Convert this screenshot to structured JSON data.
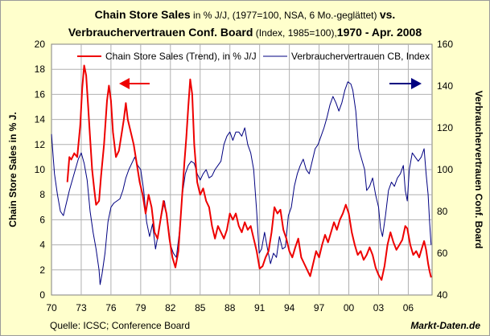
{
  "title": {
    "line1_a": "Chain Store Sales",
    "line1_b": " in % J/J, (1977=100, NSA, 6 Mo.-geglättet) ",
    "line1_c": "vs.",
    "line2_a": "Verbrauchervertrauen Conf. Board",
    "line2_b": " (Index, 1985=100),",
    "line2_c": "1970 - Apr. 2008"
  },
  "source": "Quelle: ICSC; Conference Board",
  "brand": "Markt-Daten.de",
  "colors": {
    "sales": "#ee0000",
    "confidence": "#000080",
    "background": "#ffffcc",
    "plot": "#ffffff",
    "grid": "#b0b0b0"
  },
  "chart_data": {
    "type": "line",
    "xlabel": "",
    "x_ticks": [
      "70",
      "73",
      "76",
      "79",
      "82",
      "85",
      "88",
      "91",
      "94",
      "97",
      "00",
      "03",
      "06"
    ],
    "xlim": [
      1970,
      2008.4
    ],
    "ylabel_left": "Chain Store Sales in % J.",
    "ylim_left": [
      0,
      20
    ],
    "y_ticks_left": [
      "0",
      "2",
      "4",
      "6",
      "8",
      "10",
      "12",
      "14",
      "16",
      "18",
      "20"
    ],
    "ylabel_right": "Verbrauchervertrauen Conf. Board",
    "ylim_right": [
      40,
      160
    ],
    "y_ticks_right": [
      "40",
      "60",
      "80",
      "100",
      "120",
      "140",
      "160"
    ],
    "grid": true,
    "legend_position": "top",
    "series": [
      {
        "name": "Chain Store Sales (Trend), in % J/J",
        "axis": "left",
        "color": "#ee0000",
        "points": [
          [
            1971.6,
            9.0
          ],
          [
            1971.8,
            11.0
          ],
          [
            1972.0,
            10.8
          ],
          [
            1972.3,
            11.3
          ],
          [
            1972.6,
            11.0
          ],
          [
            1972.9,
            13.5
          ],
          [
            1973.1,
            16.5
          ],
          [
            1973.3,
            18.3
          ],
          [
            1973.5,
            17.5
          ],
          [
            1973.7,
            15.0
          ],
          [
            1973.9,
            12.5
          ],
          [
            1974.1,
            10.0
          ],
          [
            1974.3,
            8.5
          ],
          [
            1974.5,
            7.2
          ],
          [
            1974.8,
            7.5
          ],
          [
            1975.0,
            9.5
          ],
          [
            1975.3,
            12.0
          ],
          [
            1975.6,
            15.5
          ],
          [
            1975.8,
            16.7
          ],
          [
            1976.0,
            15.5
          ],
          [
            1976.2,
            13.0
          ],
          [
            1976.5,
            11.0
          ],
          [
            1976.8,
            11.5
          ],
          [
            1977.1,
            13.0
          ],
          [
            1977.3,
            14.0
          ],
          [
            1977.5,
            15.3
          ],
          [
            1977.7,
            14.0
          ],
          [
            1978.0,
            13.0
          ],
          [
            1978.3,
            12.0
          ],
          [
            1978.6,
            10.5
          ],
          [
            1978.9,
            9.0
          ],
          [
            1979.2,
            8.0
          ],
          [
            1979.5,
            6.5
          ],
          [
            1979.8,
            8.0
          ],
          [
            1980.1,
            7.0
          ],
          [
            1980.4,
            5.0
          ],
          [
            1980.7,
            4.5
          ],
          [
            1981.0,
            6.0
          ],
          [
            1981.3,
            7.5
          ],
          [
            1981.6,
            6.5
          ],
          [
            1981.9,
            4.5
          ],
          [
            1982.2,
            3.0
          ],
          [
            1982.5,
            2.2
          ],
          [
            1982.8,
            3.5
          ],
          [
            1983.1,
            7.0
          ],
          [
            1983.4,
            10.5
          ],
          [
            1983.6,
            12.5
          ],
          [
            1983.8,
            15.0
          ],
          [
            1984.0,
            17.2
          ],
          [
            1984.2,
            16.0
          ],
          [
            1984.4,
            12.0
          ],
          [
            1984.7,
            9.0
          ],
          [
            1985.0,
            8.0
          ],
          [
            1985.3,
            8.5
          ],
          [
            1985.6,
            7.5
          ],
          [
            1985.9,
            7.0
          ],
          [
            1986.2,
            5.5
          ],
          [
            1986.5,
            4.5
          ],
          [
            1986.8,
            5.5
          ],
          [
            1987.1,
            5.0
          ],
          [
            1987.4,
            4.5
          ],
          [
            1987.7,
            5.2
          ],
          [
            1988.0,
            6.5
          ],
          [
            1988.3,
            6.0
          ],
          [
            1988.6,
            6.5
          ],
          [
            1988.9,
            5.5
          ],
          [
            1989.2,
            5.0
          ],
          [
            1989.5,
            5.8
          ],
          [
            1989.8,
            5.2
          ],
          [
            1990.1,
            5.5
          ],
          [
            1990.4,
            4.5
          ],
          [
            1990.7,
            3.5
          ],
          [
            1991.0,
            2.1
          ],
          [
            1991.3,
            2.3
          ],
          [
            1991.6,
            3.0
          ],
          [
            1991.9,
            3.5
          ],
          [
            1992.2,
            5.0
          ],
          [
            1992.5,
            7.0
          ],
          [
            1992.8,
            6.5
          ],
          [
            1993.1,
            6.8
          ],
          [
            1993.4,
            5.2
          ],
          [
            1993.7,
            4.5
          ],
          [
            1994.0,
            3.5
          ],
          [
            1994.3,
            3.0
          ],
          [
            1994.6,
            3.8
          ],
          [
            1994.9,
            4.5
          ],
          [
            1995.2,
            3.0
          ],
          [
            1995.5,
            2.5
          ],
          [
            1995.8,
            2.0
          ],
          [
            1996.1,
            1.5
          ],
          [
            1996.4,
            2.5
          ],
          [
            1996.7,
            3.5
          ],
          [
            1997.0,
            3.0
          ],
          [
            1997.3,
            4.0
          ],
          [
            1997.6,
            4.8
          ],
          [
            1997.9,
            4.2
          ],
          [
            1998.2,
            5.0
          ],
          [
            1998.5,
            5.8
          ],
          [
            1998.8,
            5.2
          ],
          [
            1999.1,
            6.0
          ],
          [
            1999.4,
            6.5
          ],
          [
            1999.7,
            7.2
          ],
          [
            2000.0,
            6.5
          ],
          [
            2000.3,
            5.0
          ],
          [
            2000.6,
            4.0
          ],
          [
            2000.9,
            3.2
          ],
          [
            2001.2,
            3.5
          ],
          [
            2001.5,
            2.8
          ],
          [
            2001.8,
            3.2
          ],
          [
            2002.1,
            3.8
          ],
          [
            2002.4,
            3.2
          ],
          [
            2002.7,
            2.2
          ],
          [
            2003.0,
            1.6
          ],
          [
            2003.3,
            1.2
          ],
          [
            2003.6,
            2.3
          ],
          [
            2003.9,
            4.0
          ],
          [
            2004.2,
            5.0
          ],
          [
            2004.5,
            4.2
          ],
          [
            2004.8,
            3.6
          ],
          [
            2005.1,
            4.0
          ],
          [
            2005.4,
            4.4
          ],
          [
            2005.7,
            5.5
          ],
          [
            2005.9,
            5.3
          ],
          [
            2006.2,
            4.0
          ],
          [
            2006.5,
            3.2
          ],
          [
            2006.8,
            3.5
          ],
          [
            2007.1,
            3.0
          ],
          [
            2007.4,
            3.8
          ],
          [
            2007.6,
            4.3
          ],
          [
            2007.8,
            3.6
          ],
          [
            2008.0,
            2.5
          ],
          [
            2008.15,
            1.9
          ],
          [
            2008.3,
            1.4
          ]
        ]
      },
      {
        "name": "Verbrauchervertrauen CB, Index",
        "axis": "right",
        "color": "#000080",
        "points": [
          [
            1970.0,
            117
          ],
          [
            1970.3,
            98
          ],
          [
            1970.6,
            88
          ],
          [
            1970.9,
            80
          ],
          [
            1971.2,
            78
          ],
          [
            1971.5,
            84
          ],
          [
            1971.8,
            90
          ],
          [
            1972.1,
            95
          ],
          [
            1972.4,
            100
          ],
          [
            1972.7,
            105
          ],
          [
            1973.0,
            108
          ],
          [
            1973.3,
            103
          ],
          [
            1973.6,
            95
          ],
          [
            1973.9,
            80
          ],
          [
            1974.2,
            70
          ],
          [
            1974.5,
            62
          ],
          [
            1974.8,
            52
          ],
          [
            1974.9,
            45
          ],
          [
            1975.1,
            50
          ],
          [
            1975.4,
            60
          ],
          [
            1975.7,
            75
          ],
          [
            1976.0,
            82
          ],
          [
            1976.3,
            84
          ],
          [
            1976.6,
            85
          ],
          [
            1976.9,
            86
          ],
          [
            1977.2,
            90
          ],
          [
            1977.5,
            96
          ],
          [
            1977.8,
            100
          ],
          [
            1978.1,
            103
          ],
          [
            1978.4,
            106
          ],
          [
            1978.7,
            102
          ],
          [
            1979.0,
            100
          ],
          [
            1979.3,
            90
          ],
          [
            1979.6,
            75
          ],
          [
            1979.9,
            68
          ],
          [
            1980.2,
            74
          ],
          [
            1980.5,
            62
          ],
          [
            1980.8,
            70
          ],
          [
            1981.1,
            78
          ],
          [
            1981.4,
            85
          ],
          [
            1981.7,
            76
          ],
          [
            1982.0,
            64
          ],
          [
            1982.3,
            60
          ],
          [
            1982.6,
            58
          ],
          [
            1982.9,
            70
          ],
          [
            1983.2,
            88
          ],
          [
            1983.5,
            98
          ],
          [
            1983.8,
            102
          ],
          [
            1984.1,
            104
          ],
          [
            1984.4,
            103
          ],
          [
            1984.7,
            98
          ],
          [
            1985.0,
            95
          ],
          [
            1985.3,
            98
          ],
          [
            1985.6,
            100
          ],
          [
            1985.9,
            96
          ],
          [
            1986.2,
            97
          ],
          [
            1986.5,
            100
          ],
          [
            1986.8,
            102
          ],
          [
            1987.1,
            104
          ],
          [
            1987.4,
            112
          ],
          [
            1987.7,
            116
          ],
          [
            1988.0,
            118
          ],
          [
            1988.3,
            114
          ],
          [
            1988.6,
            118
          ],
          [
            1988.9,
            118
          ],
          [
            1989.2,
            116
          ],
          [
            1989.5,
            120
          ],
          [
            1989.8,
            112
          ],
          [
            1990.1,
            108
          ],
          [
            1990.4,
            100
          ],
          [
            1990.7,
            80
          ],
          [
            1990.95,
            60
          ],
          [
            1991.2,
            62
          ],
          [
            1991.5,
            70
          ],
          [
            1991.8,
            62
          ],
          [
            1992.1,
            55
          ],
          [
            1992.4,
            60
          ],
          [
            1992.7,
            58
          ],
          [
            1993.0,
            68
          ],
          [
            1993.3,
            62
          ],
          [
            1993.6,
            63
          ],
          [
            1993.9,
            78
          ],
          [
            1994.2,
            82
          ],
          [
            1994.5,
            92
          ],
          [
            1994.8,
            98
          ],
          [
            1995.1,
            102
          ],
          [
            1995.4,
            105
          ],
          [
            1995.7,
            100
          ],
          [
            1996.0,
            98
          ],
          [
            1996.3,
            104
          ],
          [
            1996.6,
            110
          ],
          [
            1996.9,
            112
          ],
          [
            1997.2,
            116
          ],
          [
            1997.5,
            120
          ],
          [
            1997.8,
            125
          ],
          [
            1998.1,
            131
          ],
          [
            1998.4,
            135
          ],
          [
            1998.7,
            132
          ],
          [
            1999.0,
            128
          ],
          [
            1999.3,
            132
          ],
          [
            1999.6,
            138
          ],
          [
            1999.9,
            142
          ],
          [
            2000.2,
            141
          ],
          [
            2000.4,
            138
          ],
          [
            2000.7,
            128
          ],
          [
            2001.0,
            110
          ],
          [
            2001.3,
            105
          ],
          [
            2001.6,
            100
          ],
          [
            2001.8,
            90
          ],
          [
            2002.1,
            92
          ],
          [
            2002.4,
            96
          ],
          [
            2002.7,
            88
          ],
          [
            2003.0,
            82
          ],
          [
            2003.2,
            72
          ],
          [
            2003.4,
            68
          ],
          [
            2003.7,
            78
          ],
          [
            2004.0,
            90
          ],
          [
            2004.3,
            94
          ],
          [
            2004.6,
            92
          ],
          [
            2004.9,
            96
          ],
          [
            2005.2,
            98
          ],
          [
            2005.5,
            102
          ],
          [
            2005.7,
            90
          ],
          [
            2005.9,
            85
          ],
          [
            2006.1,
            100
          ],
          [
            2006.4,
            108
          ],
          [
            2006.7,
            106
          ],
          [
            2007.0,
            104
          ],
          [
            2007.3,
            106
          ],
          [
            2007.6,
            110
          ],
          [
            2007.8,
            98
          ],
          [
            2008.0,
            88
          ],
          [
            2008.15,
            75
          ],
          [
            2008.3,
            64
          ]
        ]
      }
    ]
  }
}
